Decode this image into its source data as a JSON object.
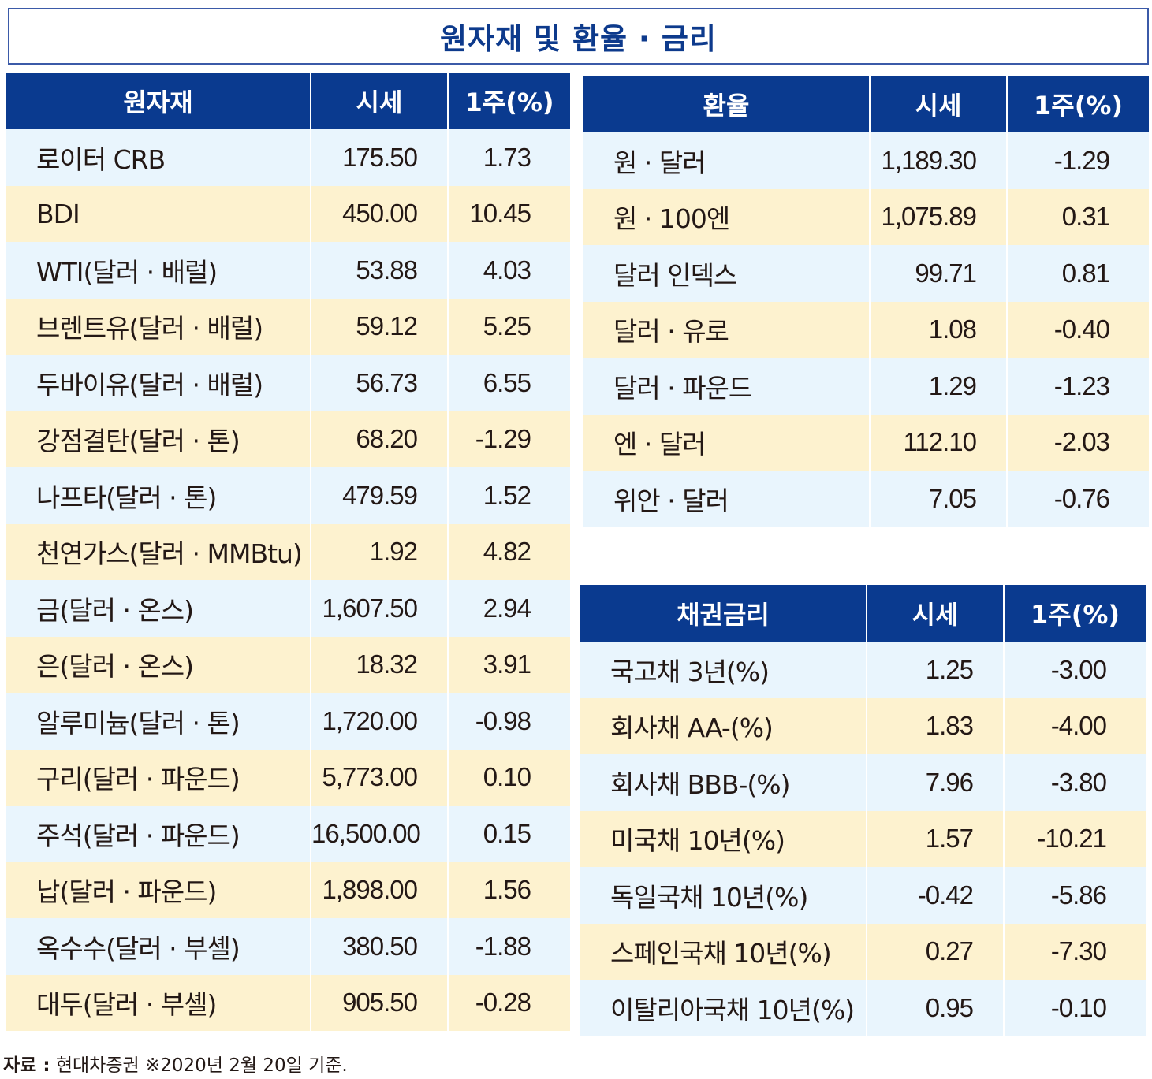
{
  "title": "원자재 및 환율 · 금리",
  "commodity": {
    "headers": [
      "원자재",
      "시세",
      "1주(%)"
    ],
    "rows": [
      {
        "name": "로이터 CRB",
        "price": "175.50",
        "change": "1.73"
      },
      {
        "name": "BDI",
        "price": "450.00",
        "change": "10.45"
      },
      {
        "name": "WTI(달러 · 배럴)",
        "price": "53.88",
        "change": "4.03"
      },
      {
        "name": "브렌트유(달러 · 배럴)",
        "price": "59.12",
        "change": "5.25"
      },
      {
        "name": "두바이유(달러 · 배럴)",
        "price": "56.73",
        "change": "6.55"
      },
      {
        "name": "강점결탄(달러 · 톤)",
        "price": "68.20",
        "change": "-1.29"
      },
      {
        "name": "나프타(달러 · 톤)",
        "price": "479.59",
        "change": "1.52"
      },
      {
        "name": "천연가스(달러 · MMBtu)",
        "price": "1.92",
        "change": "4.82"
      },
      {
        "name": "금(달러 · 온스)",
        "price": "1,607.50",
        "change": "2.94"
      },
      {
        "name": "은(달러 · 온스)",
        "price": "18.32",
        "change": "3.91"
      },
      {
        "name": "알루미늄(달러 · 톤)",
        "price": "1,720.00",
        "change": "-0.98"
      },
      {
        "name": "구리(달러 · 파운드)",
        "price": "5,773.00",
        "change": "0.10"
      },
      {
        "name": "주석(달러 · 파운드)",
        "price": "16,500.00",
        "change": "0.15"
      },
      {
        "name": "납(달러 · 파운드)",
        "price": "1,898.00",
        "change": "1.56"
      },
      {
        "name": "옥수수(달러 · 부셸)",
        "price": "380.50",
        "change": "-1.88"
      },
      {
        "name": "대두(달러 · 부셸)",
        "price": "905.50",
        "change": "-0.28"
      }
    ]
  },
  "fx": {
    "headers": [
      "환율",
      "시세",
      "1주(%)"
    ],
    "rows": [
      {
        "name": "원 · 달러",
        "price": "1,189.30",
        "change": "-1.29"
      },
      {
        "name": "원 · 100엔",
        "price": "1,075.89",
        "change": "0.31"
      },
      {
        "name": "달러 인덱스",
        "price": "99.71",
        "change": "0.81"
      },
      {
        "name": "달러 · 유로",
        "price": "1.08",
        "change": "-0.40"
      },
      {
        "name": "달러 · 파운드",
        "price": "1.29",
        "change": "-1.23"
      },
      {
        "name": "엔 · 달러",
        "price": "112.10",
        "change": "-2.03"
      },
      {
        "name": "위안 · 달러",
        "price": "7.05",
        "change": "-0.76"
      }
    ]
  },
  "bond": {
    "headers": [
      "채권금리",
      "시세",
      "1주(%)"
    ],
    "rows": [
      {
        "name": "국고채 3년(%)",
        "price": "1.25",
        "change": "-3.00"
      },
      {
        "name": "회사채 AA-(%)",
        "price": "1.83",
        "change": "-4.00"
      },
      {
        "name": "회사채 BBB-(%)",
        "price": "7.96",
        "change": "-3.80"
      },
      {
        "name": "미국채 10년(%)",
        "price": "1.57",
        "change": "-10.21"
      },
      {
        "name": "독일국채 10년(%)",
        "price": "-0.42",
        "change": "-5.86"
      },
      {
        "name": "스페인국채 10년(%)",
        "price": "0.27",
        "change": "-7.30"
      },
      {
        "name": "이탈리아국채 10년(%)",
        "price": "0.95",
        "change": "-0.10"
      }
    ]
  },
  "source": {
    "label": "자료 :",
    "text": "현대차증권 ※2020년 2월 20일 기준."
  },
  "colors": {
    "header_bg": "#0a3a8f",
    "title_text": "#0d3a8c",
    "row_blue": "#e9f5fd",
    "row_yellow": "#fdf2cf"
  }
}
